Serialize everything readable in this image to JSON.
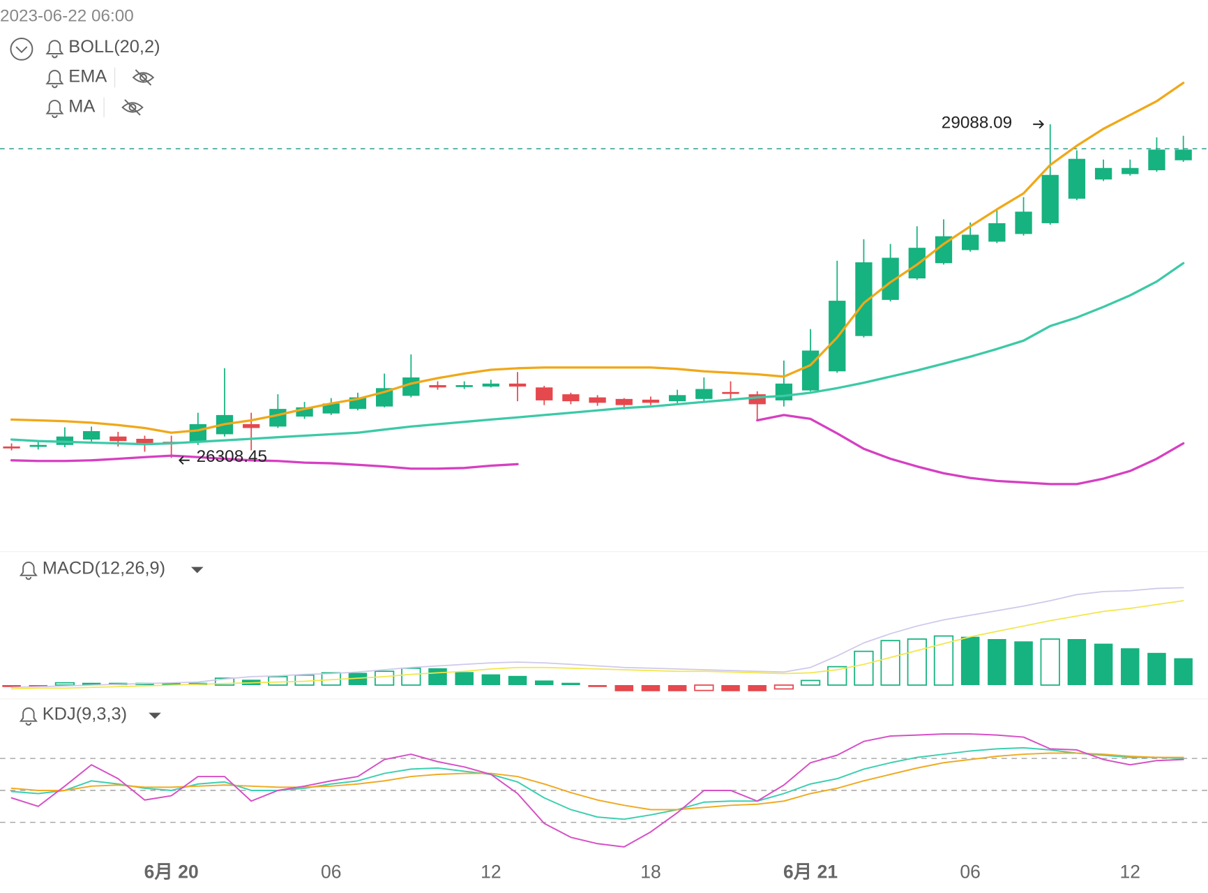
{
  "header": {
    "timestamp": "2023-06-22 06:00",
    "indicators": [
      "BOLL(20,2)",
      "EMA",
      "MA"
    ]
  },
  "chart_data": [
    {
      "type": "candlestick",
      "up_color": "#16b27f",
      "down_color": "#e5484d",
      "open": [
        26404,
        26404,
        26417,
        26462,
        26487,
        26468,
        26443,
        26443,
        26506,
        26590,
        26570,
        26653,
        26679,
        26717,
        26737,
        26826,
        26915,
        26903,
        26903,
        26928,
        26896,
        26839,
        26813,
        26800,
        26794,
        26781,
        26800,
        26858,
        26839,
        26788,
        26871,
        27030,
        27324,
        27625,
        27804,
        27931,
        28040,
        28110,
        28174,
        28264,
        28468,
        28628,
        28673,
        28705,
        28788
      ],
      "high": [
        26430,
        26443,
        26564,
        26570,
        26526,
        26494,
        26494,
        26685,
        27056,
        26685,
        26839,
        26775,
        26807,
        26852,
        27011,
        27171,
        26947,
        26947,
        26960,
        27024,
        26909,
        26852,
        26832,
        26807,
        26820,
        26877,
        26979,
        26947,
        26864,
        27120,
        27382,
        27951,
        28130,
        28091,
        28238,
        28296,
        28270,
        28385,
        28481,
        29088.09,
        28871,
        28794,
        28794,
        28979,
        28992
      ],
      "low": [
        26372,
        26379,
        26398,
        26436,
        26404,
        26360,
        26308.45,
        26417,
        26487,
        26372,
        26558,
        26634,
        26666,
        26705,
        26730,
        26813,
        26877,
        26883,
        26896,
        26781,
        26749,
        26756,
        26743,
        26711,
        26749,
        26762,
        26775,
        26800,
        26622,
        26737,
        26864,
        27018,
        27312,
        27612,
        27791,
        27919,
        28027,
        28098,
        28161,
        28251,
        28455,
        28615,
        28660,
        28692,
        28775
      ],
      "close": [
        26398,
        26417,
        26487,
        26532,
        26449,
        26423,
        26430,
        26590,
        26666,
        26558,
        26717,
        26730,
        26762,
        26813,
        26890,
        26979,
        26896,
        26915,
        26928,
        26903,
        26788,
        26781,
        26768,
        26749,
        26768,
        26832,
        26883,
        26845,
        26756,
        26928,
        27203,
        27618,
        27938,
        27976,
        28059,
        28155,
        28168,
        28264,
        28360,
        28666,
        28800,
        28724,
        28724,
        28877,
        28877
      ],
      "series": [
        {
          "color": "#f0a818",
          "values": [
            26628,
            26622,
            26615,
            26602,
            26583,
            26558,
            26519,
            26538,
            26590,
            26622,
            26666,
            26717,
            26762,
            26800,
            26858,
            26928,
            26973,
            27011,
            27043,
            27056,
            27062,
            27062,
            27062,
            27062,
            27062,
            27050,
            27030,
            27018,
            27005,
            26986,
            27082,
            27312,
            27599,
            27772,
            27919,
            28091,
            28238,
            28379,
            28513,
            28749,
            28909,
            29050,
            29165,
            29280,
            29433
          ]
        },
        {
          "color": "#3cc9a7",
          "values": [
            26462,
            26449,
            26443,
            26436,
            26430,
            26423,
            26430,
            26443,
            26455,
            26468,
            26481,
            26494,
            26506,
            26519,
            26545,
            26570,
            26590,
            26609,
            26628,
            26647,
            26666,
            26685,
            26705,
            26724,
            26737,
            26756,
            26775,
            26794,
            26813,
            26826,
            26852,
            26890,
            26935,
            26986,
            27037,
            27094,
            27152,
            27216,
            27286,
            27407,
            27478,
            27567,
            27663,
            27778,
            27931
          ]
        },
        {
          "color": "#d63fc2",
          "values": [
            26289,
            26283,
            26283,
            26289,
            26302,
            26315,
            26328,
            26315,
            26302,
            26289,
            26283,
            26270,
            26264,
            26251,
            26238,
            26219,
            26219,
            26225,
            26244,
            26257,
            null,
            null,
            null,
            null,
            null,
            null,
            null,
            null,
            26622,
            26666,
            26634,
            26513,
            26385,
            26302,
            26238,
            26181,
            26142,
            26117,
            26104,
            26091,
            26091,
            26136,
            26200,
            26302,
            26430
          ]
        }
      ],
      "price_line": 28884,
      "price_line_color": "#2a9d8f",
      "ylim": [
        25586,
        30123
      ]
    },
    {
      "type": "macd",
      "title": "MACD(12,26,9)",
      "histogram": [
        -2,
        -2,
        3,
        3,
        3,
        3,
        3,
        3,
        9,
        7,
        11,
        13,
        16,
        16,
        18,
        22,
        22,
        17,
        14,
        12,
        6,
        3,
        -2,
        -8,
        -8,
        -8,
        -7,
        -8,
        -8,
        -5,
        6,
        24,
        44,
        58,
        60,
        64,
        63,
        60,
        57,
        60,
        60,
        54,
        48,
        42,
        35
      ],
      "up_color": "#16b27f",
      "down_color": "#e5484d",
      "series": [
        {
          "color": "#cfc8ea",
          "values": [
            -3,
            -2,
            -1,
            0,
            1,
            2,
            3,
            4,
            8,
            11,
            12,
            14,
            15,
            17,
            20,
            23,
            25,
            27,
            29,
            30,
            29,
            27,
            25,
            23,
            22,
            21,
            20,
            19,
            18,
            17,
            23,
            38,
            55,
            67,
            77,
            85,
            91,
            97,
            103,
            110,
            118,
            122,
            123,
            126,
            127
          ]
        },
        {
          "color": "#f2e64a",
          "values": [
            -5,
            -4,
            -4,
            -3,
            -2,
            -1,
            0,
            1,
            2,
            3,
            4,
            5,
            7,
            9,
            11,
            14,
            16,
            18,
            21,
            23,
            23,
            22,
            21,
            20,
            19,
            18,
            18,
            17,
            16,
            15,
            16,
            20,
            27,
            36,
            45,
            54,
            63,
            70,
            77,
            84,
            90,
            96,
            100,
            105,
            110
          ]
        }
      ],
      "ylim": [
        -12,
        173
      ]
    },
    {
      "type": "kdj",
      "title": "KDJ(9,3,3)",
      "categories": [
        null,
        null,
        null,
        null,
        null,
        null,
        "6月 20",
        null,
        null,
        null,
        null,
        null,
        "06",
        null,
        null,
        null,
        null,
        null,
        "12",
        null,
        null,
        null,
        null,
        null,
        "18",
        null,
        null,
        null,
        null,
        null,
        "6月 21",
        null,
        null,
        null,
        null,
        null,
        "06",
        null,
        null,
        null,
        null,
        null,
        "12",
        null,
        null
      ],
      "series": [
        {
          "color": "#3ccfb0",
          "values": [
            49,
            47,
            50,
            59,
            56,
            52,
            50,
            56,
            58,
            50,
            50,
            52,
            56,
            59,
            66,
            70,
            71,
            68,
            65,
            58,
            43,
            32,
            25,
            23,
            27,
            32,
            39,
            40,
            40,
            47,
            56,
            61,
            70,
            76,
            81,
            84,
            87,
            89,
            90,
            88,
            85,
            83,
            81,
            81,
            80
          ]
        },
        {
          "color": "#f0aa22",
          "values": [
            52,
            50,
            50,
            54,
            55,
            53,
            53,
            54,
            55,
            54,
            53,
            53,
            54,
            56,
            59,
            63,
            65,
            66,
            66,
            63,
            56,
            48,
            41,
            36,
            32,
            32,
            34,
            36,
            37,
            40,
            47,
            52,
            59,
            65,
            71,
            76,
            79,
            82,
            84,
            85,
            85,
            84,
            82,
            81,
            81
          ]
        },
        {
          "color": "#d64fc6",
          "values": [
            43,
            35,
            54,
            74,
            61,
            41,
            45,
            63,
            63,
            40,
            50,
            54,
            59,
            63,
            79,
            84,
            77,
            72,
            65,
            47,
            19,
            6,
            0,
            -3,
            11,
            29,
            50,
            50,
            40,
            55,
            76,
            83,
            96,
            101,
            102,
            103,
            103,
            102,
            100,
            89,
            88,
            79,
            74,
            78,
            79
          ]
        }
      ],
      "ylim": [
        -11,
        133
      ],
      "yticks": [
        20,
        50,
        80
      ],
      "grid": true
    }
  ]
}
